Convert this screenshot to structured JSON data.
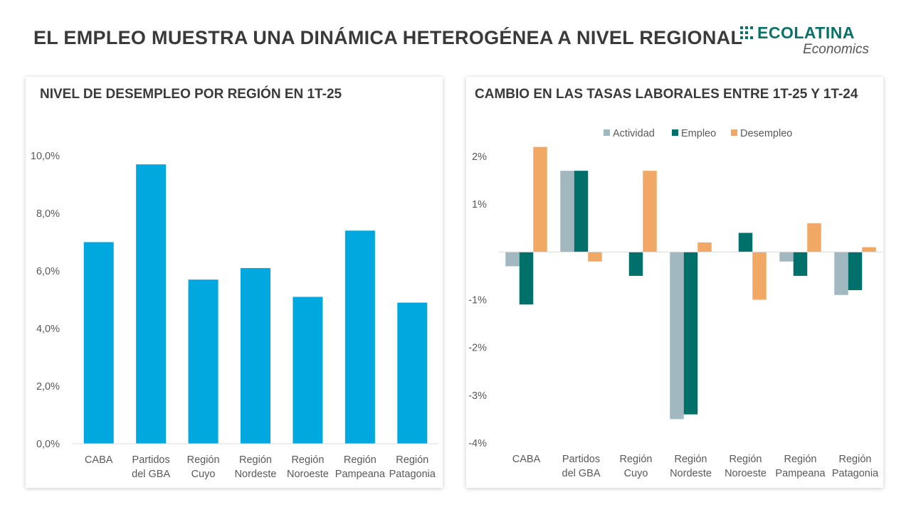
{
  "header": {
    "title": "EL EMPLEO MUESTRA UNA DINÁMICA HETEROGÉNEA A NIVEL REGIONAL"
  },
  "logo": {
    "word": "ECOLATINA",
    "sub": "Economics",
    "color": "#0a7168"
  },
  "chart_data": [
    {
      "type": "bar",
      "title": "NIVEL DE DESEMPLEO POR REGIÓN EN 1T-25",
      "categories": [
        [
          "CABA"
        ],
        [
          "Partidos",
          "del GBA"
        ],
        [
          "Región",
          "Cuyo"
        ],
        [
          "Región",
          "Nordeste"
        ],
        [
          "Región",
          "Noroeste"
        ],
        [
          "Región",
          "Pampeana"
        ],
        [
          "Región",
          "Patagonia"
        ]
      ],
      "values": [
        7.0,
        9.7,
        5.7,
        6.1,
        5.1,
        7.4,
        4.9
      ],
      "ylim": [
        0,
        10
      ],
      "yticks": [
        0,
        2,
        4,
        6,
        8,
        10
      ],
      "ytick_labels": [
        "0,0%",
        "2,0%",
        "4,0%",
        "6,0%",
        "8,0%",
        "10,0%"
      ],
      "color": "#00a8e0",
      "grid": false
    },
    {
      "type": "bar",
      "title": "CAMBIO EN LAS TASAS LABORALES ENTRE 1T-25 Y 1T-24",
      "categories": [
        [
          "CABA"
        ],
        [
          "Partidos",
          "del GBA"
        ],
        [
          "Región",
          "Cuyo"
        ],
        [
          "Región",
          "Nordeste"
        ],
        [
          "Región",
          "Noroeste"
        ],
        [
          "Región",
          "Pampeana"
        ],
        [
          "Región",
          "Patagonia"
        ]
      ],
      "series": [
        {
          "name": "Actividad",
          "color": "#a2b8c1",
          "values": [
            -0.3,
            1.7,
            0.0,
            -3.5,
            0.0,
            -0.2,
            -0.9
          ]
        },
        {
          "name": "Empleo",
          "color": "#00706b",
          "values": [
            -1.1,
            1.7,
            -0.5,
            -3.4,
            0.4,
            -0.5,
            -0.8
          ]
        },
        {
          "name": "Desempleo",
          "color": "#f2a865",
          "values": [
            2.2,
            -0.2,
            1.7,
            0.2,
            -1.0,
            0.6,
            0.1
          ]
        }
      ],
      "ylim": [
        -4,
        2
      ],
      "yticks": [
        2,
        1,
        -1,
        -2,
        -3,
        -4
      ],
      "ytick_labels": [
        "2%",
        "1%",
        "-1%",
        "-2%",
        "-3%",
        "-4%"
      ],
      "legend_position": "top-center",
      "grid": false
    }
  ]
}
